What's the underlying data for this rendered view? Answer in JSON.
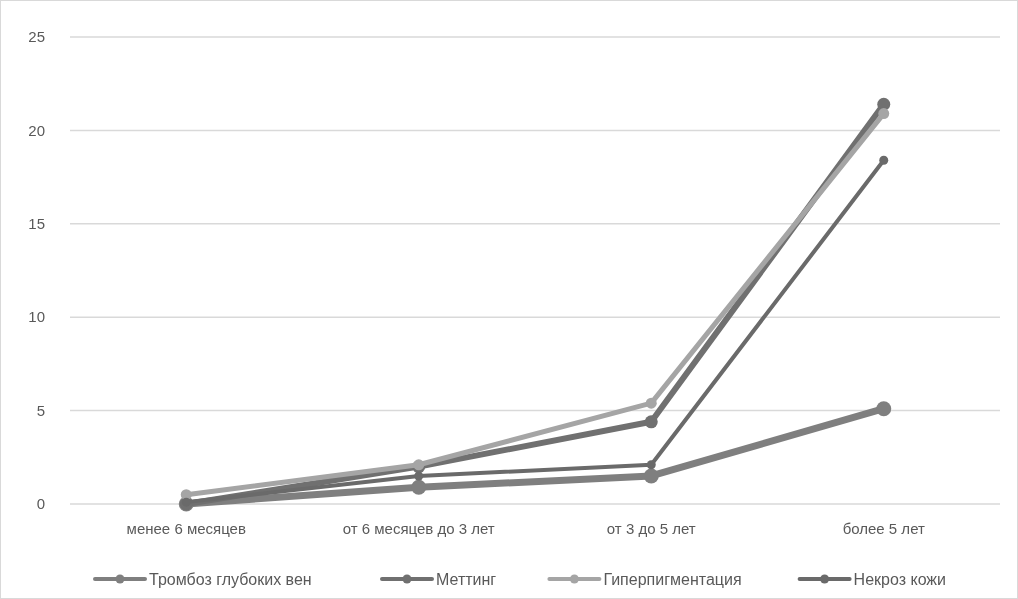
{
  "chart_data": {
    "type": "line",
    "categories": [
      "менее 6 месяцев",
      "от 6 месяцев до 3 лет",
      "от 3 до 5 лет",
      "более 5 лет"
    ],
    "series": [
      {
        "name": "Тромбоз глубоких вен",
        "color": "#7f7f7f",
        "values": [
          0,
          0.9,
          1.5,
          5.1
        ]
      },
      {
        "name": "Меттинг",
        "color": "#707070",
        "values": [
          0,
          2.0,
          4.4,
          21.4
        ]
      },
      {
        "name": "Гиперпигментация",
        "color": "#a5a5a5",
        "values": [
          0.5,
          2.1,
          5.4,
          20.9
        ]
      },
      {
        "name": "Некроз кожи",
        "color": "#6a6a6a",
        "values": [
          0.1,
          1.5,
          2.1,
          18.4
        ]
      }
    ],
    "ylim": [
      0,
      25
    ],
    "yticks": [
      0,
      5,
      10,
      15,
      20,
      25
    ],
    "grid": "y",
    "legend": "bottom",
    "marker": "circle",
    "line_style": "solid"
  }
}
